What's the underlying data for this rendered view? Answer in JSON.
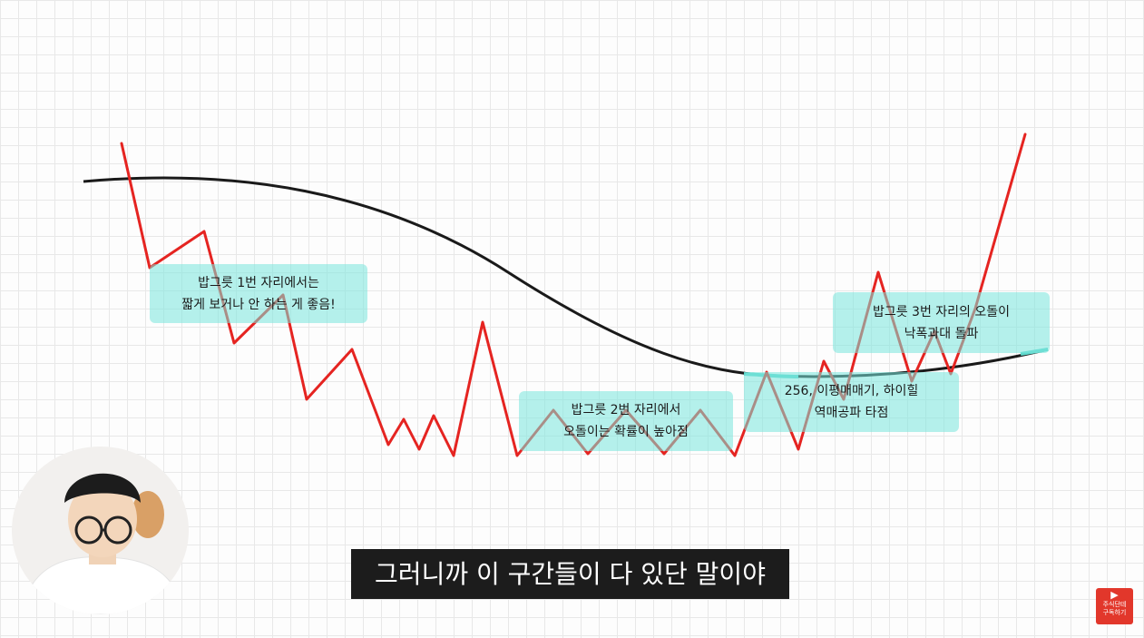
{
  "notes": [
    {
      "line1": "밥그릇 1번 자리에서는",
      "line2": "짧게 보거나 안 하는 게 좋음!"
    },
    {
      "line1": "밥그릇 2번 자리에서",
      "line2": "오돌이는 확률이 높아짐"
    },
    {
      "line1": "256, 이평매매기, 하이힐",
      "line2": "역매공파 타점"
    },
    {
      "line1": "밥그릇 3번 자리의 오돌이",
      "line2": "낙폭과대 돌파"
    }
  ],
  "subtitle": "그러니까 이 구간들이 다 있단 말이야",
  "subscribe_badge": {
    "line1": "주식단테",
    "line2": "구독하기"
  },
  "colors": {
    "price_line": "#e52421",
    "ma_line": "#1a1a1a",
    "highlight": "#5fd8cc",
    "subtitle_bg": "#1c1c1c",
    "badge": "#e2372b"
  }
}
